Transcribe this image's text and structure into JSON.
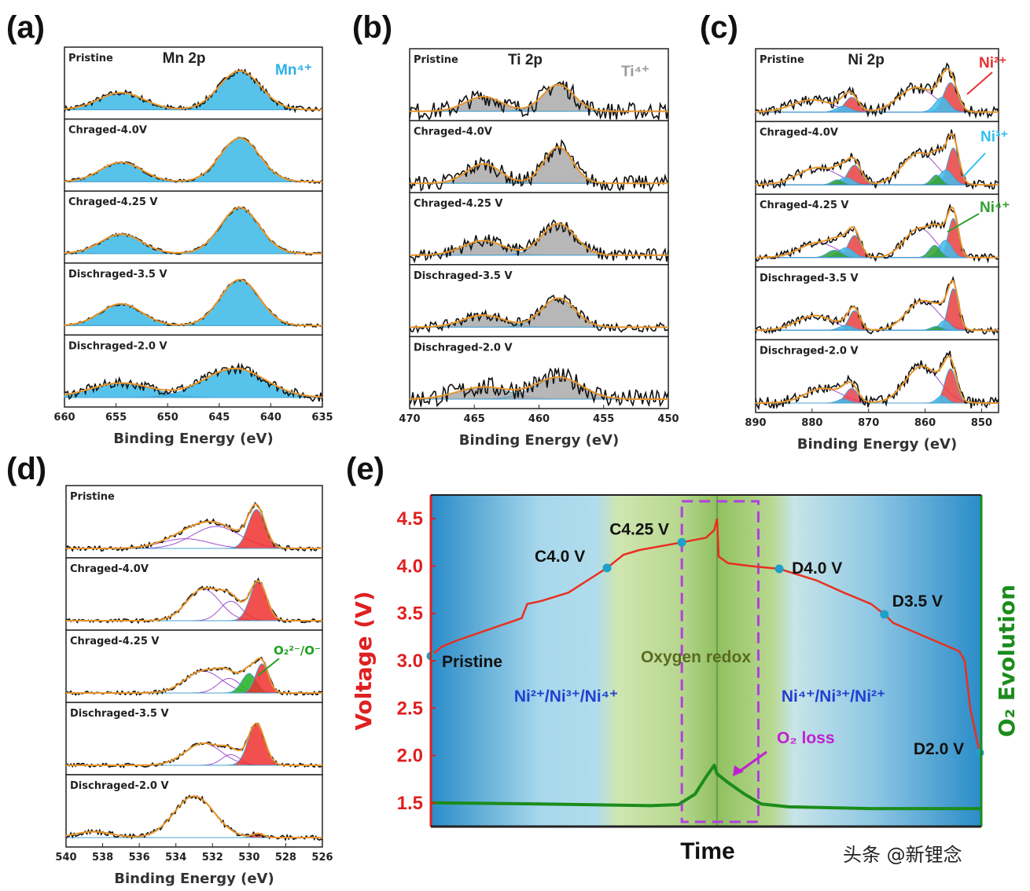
{
  "panel_labels": [
    "(a)",
    "(b)",
    "(c)",
    "(d)",
    "(e)"
  ],
  "watermark": "头条 @新锂念",
  "chart_data": [
    {
      "type": "line",
      "id": "a",
      "title": "Mn 2p",
      "species_labels": [
        {
          "text": "Mn⁴⁺",
          "color": "#2ab0e8"
        }
      ],
      "xlabel": "Binding Energy (eV)",
      "xlim": [
        660,
        635
      ],
      "xticks": [
        660,
        655,
        650,
        645,
        640,
        635
      ],
      "spectra": [
        {
          "label": "Pristine",
          "noise": 0.06,
          "components": [
            {
              "c": 654.5,
              "h": 0.35,
              "w": 2.2,
              "color": "#3ab8e8"
            },
            {
              "c": 643,
              "h": 0.8,
              "w": 2.0,
              "color": "#3ab8e8"
            }
          ]
        },
        {
          "label": "Chraged-4.0V",
          "noise": 0.03,
          "components": [
            {
              "c": 654.5,
              "h": 0.4,
              "w": 2.0,
              "color": "#3ab8e8"
            },
            {
              "c": 643,
              "h": 0.9,
              "w": 1.9,
              "color": "#3ab8e8"
            }
          ]
        },
        {
          "label": "Chraged-4.25 V",
          "noise": 0.03,
          "components": [
            {
              "c": 654.5,
              "h": 0.4,
              "w": 2.0,
              "color": "#3ab8e8"
            },
            {
              "c": 643,
              "h": 0.95,
              "w": 1.9,
              "color": "#3ab8e8"
            }
          ]
        },
        {
          "label": "Dischraged-3.5 V",
          "noise": 0.03,
          "components": [
            {
              "c": 654.5,
              "h": 0.45,
              "w": 2.0,
              "color": "#3ab8e8"
            },
            {
              "c": 643,
              "h": 0.95,
              "w": 1.9,
              "color": "#3ab8e8"
            }
          ]
        },
        {
          "label": "Dischraged-2.0 V",
          "noise": 0.1,
          "components": [
            {
              "c": 654.5,
              "h": 0.3,
              "w": 3.0,
              "color": "#3ab8e8"
            },
            {
              "c": 643.5,
              "h": 0.6,
              "w": 3.0,
              "color": "#3ab8e8"
            }
          ]
        }
      ]
    },
    {
      "type": "line",
      "id": "b",
      "title": "Ti 2p",
      "species_labels": [
        {
          "text": "Ti⁴⁺",
          "color": "#999999"
        }
      ],
      "xlabel": "Binding Energy (eV)",
      "xlim": [
        470,
        450
      ],
      "xticks": [
        470,
        465,
        460,
        455,
        450
      ],
      "spectra": [
        {
          "label": "Pristine",
          "noise": 0.18,
          "components": [
            {
              "c": 464.3,
              "h": 0.3,
              "w": 1.4,
              "color": "#aaaaaa"
            },
            {
              "c": 458.5,
              "h": 0.55,
              "w": 1.2,
              "color": "#aaaaaa"
            }
          ]
        },
        {
          "label": "Chraged-4.0V",
          "noise": 0.16,
          "components": [
            {
              "c": 464.3,
              "h": 0.4,
              "w": 1.3,
              "color": "#aaaaaa"
            },
            {
              "c": 458.5,
              "h": 0.75,
              "w": 1.1,
              "color": "#aaaaaa"
            }
          ]
        },
        {
          "label": "Chraged-4.25 V",
          "noise": 0.14,
          "components": [
            {
              "c": 464.3,
              "h": 0.3,
              "w": 1.6,
              "color": "#aaaaaa"
            },
            {
              "c": 458.5,
              "h": 0.65,
              "w": 1.3,
              "color": "#aaaaaa"
            }
          ]
        },
        {
          "label": "Dischraged-3.5 V",
          "noise": 0.1,
          "components": [
            {
              "c": 464.3,
              "h": 0.25,
              "w": 1.6,
              "color": "#aaaaaa"
            },
            {
              "c": 458.5,
              "h": 0.6,
              "w": 1.3,
              "color": "#aaaaaa"
            }
          ]
        },
        {
          "label": "Dischraged-2.0 V",
          "noise": 0.2,
          "components": [
            {
              "c": 464.3,
              "h": 0.25,
              "w": 2.0,
              "color": "#aaaaaa"
            },
            {
              "c": 458.5,
              "h": 0.45,
              "w": 1.8,
              "color": "#aaaaaa"
            }
          ]
        }
      ]
    },
    {
      "type": "line",
      "id": "c",
      "title": "Ni 2p",
      "species_labels": [
        {
          "text": "Ni²⁺",
          "color": "#e83030"
        },
        {
          "text": "Ni³⁺",
          "color": "#30c0f0"
        },
        {
          "text": "Ni⁴⁺",
          "color": "#30a030"
        }
      ],
      "xlabel": "Binding Energy (eV)",
      "xlim": [
        890,
        847
      ],
      "xticks": [
        890,
        880,
        870,
        860,
        850
      ],
      "spectra": [
        {
          "label": "Pristine",
          "noise": 0.12,
          "components": [
            {
              "c": 880,
              "h": 0.25,
              "w": 3.5,
              "color": "none"
            },
            {
              "c": 873,
              "h": 0.3,
              "w": 1.2,
              "color": "#e84040"
            },
            {
              "c": 874.5,
              "h": 0.12,
              "w": 1.2,
              "color": "#40c0f0"
            },
            {
              "c": 861.5,
              "h": 0.5,
              "w": 3.2,
              "color": "none"
            },
            {
              "c": 855.5,
              "h": 0.6,
              "w": 1.2,
              "color": "#e84040"
            },
            {
              "c": 857,
              "h": 0.3,
              "w": 1.2,
              "color": "#40c0f0"
            }
          ]
        },
        {
          "label": "Chraged-4.0V",
          "noise": 0.1,
          "components": [
            {
              "c": 879,
              "h": 0.35,
              "w": 3.5,
              "color": "none"
            },
            {
              "c": 872.5,
              "h": 0.4,
              "w": 1.2,
              "color": "#e84040"
            },
            {
              "c": 874,
              "h": 0.15,
              "w": 1.2,
              "color": "#40c0f0"
            },
            {
              "c": 875.5,
              "h": 0.1,
              "w": 1.0,
              "color": "#30a030"
            },
            {
              "c": 861,
              "h": 0.65,
              "w": 3.0,
              "color": "none"
            },
            {
              "c": 855,
              "h": 0.75,
              "w": 1.0,
              "color": "#e84040"
            },
            {
              "c": 856.3,
              "h": 0.3,
              "w": 1.2,
              "color": "#40c0f0"
            },
            {
              "c": 858,
              "h": 0.2,
              "w": 0.9,
              "color": "#30a030"
            }
          ]
        },
        {
          "label": "Chraged-4.25 V",
          "noise": 0.08,
          "components": [
            {
              "c": 879,
              "h": 0.3,
              "w": 3.2,
              "color": "none"
            },
            {
              "c": 872.5,
              "h": 0.45,
              "w": 1.1,
              "color": "#e84040"
            },
            {
              "c": 874,
              "h": 0.2,
              "w": 1.3,
              "color": "#40c0f0"
            },
            {
              "c": 876,
              "h": 0.15,
              "w": 1.3,
              "color": "#30a030"
            },
            {
              "c": 861,
              "h": 0.6,
              "w": 2.6,
              "color": "none"
            },
            {
              "c": 855,
              "h": 0.8,
              "w": 0.9,
              "color": "#e84040"
            },
            {
              "c": 856.4,
              "h": 0.35,
              "w": 1.1,
              "color": "#40c0f0"
            },
            {
              "c": 858.3,
              "h": 0.25,
              "w": 1.0,
              "color": "#30a030"
            }
          ]
        },
        {
          "label": "Dischraged-3.5 V",
          "noise": 0.08,
          "components": [
            {
              "c": 879.5,
              "h": 0.3,
              "w": 3.2,
              "color": "none"
            },
            {
              "c": 872.5,
              "h": 0.4,
              "w": 1.0,
              "color": "#e84040"
            },
            {
              "c": 874,
              "h": 0.1,
              "w": 1.2,
              "color": "#40c0f0"
            },
            {
              "c": 860.5,
              "h": 0.6,
              "w": 2.8,
              "color": "none"
            },
            {
              "c": 855,
              "h": 0.85,
              "w": 0.9,
              "color": "#e84040"
            },
            {
              "c": 856.5,
              "h": 0.2,
              "w": 1.0,
              "color": "#40c0f0"
            },
            {
              "c": 858,
              "h": 0.08,
              "w": 1.0,
              "color": "#30a030"
            }
          ]
        },
        {
          "label": "Dischraged-2.0 V",
          "noise": 0.12,
          "components": [
            {
              "c": 878,
              "h": 0.3,
              "w": 3.2,
              "color": "none"
            },
            {
              "c": 873,
              "h": 0.3,
              "w": 1.1,
              "color": "#e84050"
            },
            {
              "c": 874.5,
              "h": 0.08,
              "w": 1.0,
              "color": "#40c0f0"
            },
            {
              "c": 860.5,
              "h": 0.75,
              "w": 3.0,
              "color": "none"
            },
            {
              "c": 855.5,
              "h": 0.7,
              "w": 1.0,
              "color": "#e84040"
            },
            {
              "c": 857,
              "h": 0.15,
              "w": 0.9,
              "color": "#40c0f0"
            }
          ]
        }
      ]
    },
    {
      "type": "line",
      "id": "d",
      "title": "",
      "species_labels": [
        {
          "text": "O₂²⁻/O⁻",
          "color": "#20a020"
        }
      ],
      "xlabel": "Binding Energy (eV)",
      "xlim": [
        540,
        526
      ],
      "xticks": [
        540,
        538,
        536,
        534,
        532,
        530,
        528,
        526
      ],
      "spectra": [
        {
          "label": "Pristine",
          "noise": 0.05,
          "components": [
            {
              "c": 533.5,
              "h": 0.2,
              "w": 1.3,
              "color": "none"
            },
            {
              "c": 531.8,
              "h": 0.45,
              "w": 1.3,
              "color": "none"
            },
            {
              "c": 529.6,
              "h": 0.8,
              "w": 0.45,
              "color": "#f03030"
            }
          ]
        },
        {
          "label": "Chraged-4.0V",
          "noise": 0.04,
          "components": [
            {
              "c": 532.5,
              "h": 0.65,
              "w": 0.9,
              "color": "none"
            },
            {
              "c": 531,
              "h": 0.4,
              "w": 0.6,
              "color": "none"
            },
            {
              "c": 529.5,
              "h": 0.8,
              "w": 0.45,
              "color": "#f03030"
            }
          ]
        },
        {
          "label": "Chraged-4.25 V",
          "noise": 0.04,
          "components": [
            {
              "c": 532.5,
              "h": 0.45,
              "w": 1.0,
              "color": "none"
            },
            {
              "c": 531.1,
              "h": 0.3,
              "w": 0.6,
              "color": "none"
            },
            {
              "c": 530,
              "h": 0.4,
              "w": 0.4,
              "color": "#20b020"
            },
            {
              "c": 529.3,
              "h": 0.6,
              "w": 0.35,
              "color": "#f03030"
            }
          ]
        },
        {
          "label": "Dischraged-3.5 V",
          "noise": 0.04,
          "components": [
            {
              "c": 532.5,
              "h": 0.45,
              "w": 1.0,
              "color": "none"
            },
            {
              "c": 531,
              "h": 0.22,
              "w": 0.5,
              "color": "none"
            },
            {
              "c": 529.6,
              "h": 0.85,
              "w": 0.45,
              "color": "#f03030"
            }
          ]
        },
        {
          "label": "Dischraged-2.0 V",
          "noise": 0.05,
          "components": [
            {
              "c": 538.5,
              "h": 0.12,
              "w": 1.0,
              "color": "none"
            },
            {
              "c": 533,
              "h": 0.85,
              "w": 1.1,
              "color": "none"
            },
            {
              "c": 529.5,
              "h": 0.08,
              "w": 0.3,
              "color": "#f03030"
            }
          ]
        }
      ]
    },
    {
      "type": "line",
      "id": "e",
      "xlabel": "Time",
      "ylabel": "Voltage (V)",
      "ylabel_right": "O₂ Evolution",
      "ylim": [
        1.25,
        4.75
      ],
      "yticks": [
        1.5,
        2.0,
        2.5,
        3.0,
        3.5,
        4.0,
        4.5
      ],
      "colors": {
        "voltage": "#e83020",
        "o2": "#1c8c1c",
        "markers": "#1ea0c8",
        "box": "#b040e0"
      },
      "voltage": {
        "x": [
          0,
          2,
          5,
          10,
          15,
          16.5,
          17.5,
          20,
          25,
          32,
          35,
          38,
          45.6,
          50,
          51.5,
          52,
          52.3,
          54,
          58,
          63.3,
          70,
          75,
          80,
          82.4,
          84,
          90,
          96,
          97,
          98,
          99.7
        ],
        "y": [
          3.05,
          3.15,
          3.22,
          3.32,
          3.42,
          3.45,
          3.6,
          3.63,
          3.72,
          3.98,
          4.12,
          4.17,
          4.25,
          4.3,
          4.38,
          4.5,
          4.1,
          4.03,
          4.0,
          3.97,
          3.85,
          3.72,
          3.6,
          3.49,
          3.4,
          3.25,
          3.1,
          3.0,
          2.5,
          2.03
        ]
      },
      "o2_evolution": {
        "x": [
          0,
          20,
          40,
          45,
          48,
          50,
          51.5,
          52,
          54,
          57,
          60,
          65,
          80,
          100
        ],
        "y": [
          0.1,
          0.08,
          0.05,
          0.07,
          0.25,
          0.55,
          0.75,
          0.6,
          0.45,
          0.25,
          0.08,
          0.03,
          0.0,
          0.0
        ]
      },
      "markers": [
        {
          "label": "Pristine",
          "x": 0,
          "y": 3.05
        },
        {
          "label": "C4.0 V",
          "x": 32,
          "y": 3.98
        },
        {
          "label": "C4.25 V",
          "x": 45.6,
          "y": 4.25
        },
        {
          "label": "D4.0 V",
          "x": 63.3,
          "y": 3.97
        },
        {
          "label": "D3.5 V",
          "x": 82.4,
          "y": 3.49
        },
        {
          "label": "D2.0 V",
          "x": 99.7,
          "y": 2.03
        }
      ],
      "annotations": {
        "oxygen_redox": "Oxygen redox",
        "charge_redox": "Ni²⁺/Ni³⁺/Ni⁴⁺",
        "discharge_redox": "Ni⁴⁺/Ni³⁺/Ni²⁺",
        "o2_loss": "O₂ loss"
      },
      "regions": {
        "oxygen_redox_box": [
          45.6,
          59.5
        ]
      }
    }
  ]
}
